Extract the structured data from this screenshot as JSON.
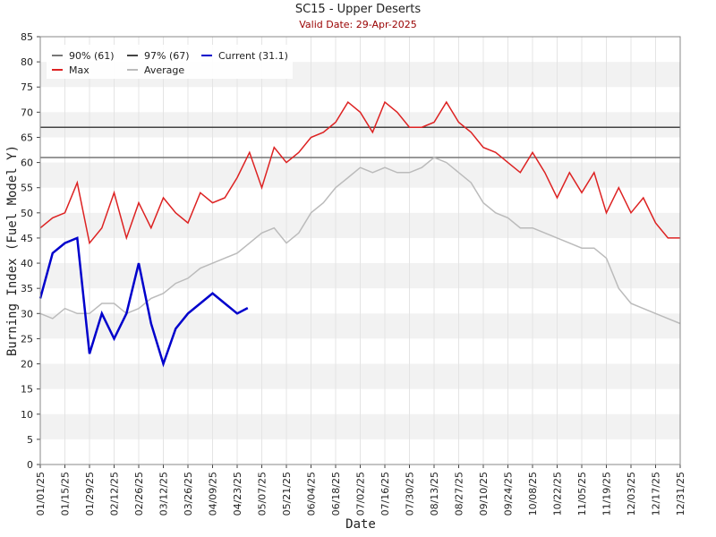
{
  "chart_data": {
    "type": "line",
    "title": "SC15 - Upper Deserts",
    "subtitle": "Valid Date: 29-Apr-2025",
    "xlabel": "Date",
    "ylabel": "Burning Index (Fuel Model Y)",
    "xlim": [
      "2025-01-01",
      "2025-12-31"
    ],
    "xticks": [
      {
        "value": "2025-01-01",
        "label": "01/01/25"
      },
      {
        "value": "2025-01-15",
        "label": "01/15/25"
      },
      {
        "value": "2025-01-29",
        "label": "01/29/25"
      },
      {
        "value": "2025-02-12",
        "label": "02/12/25"
      },
      {
        "value": "2025-02-26",
        "label": "02/26/25"
      },
      {
        "value": "2025-03-12",
        "label": "03/12/25"
      },
      {
        "value": "2025-03-26",
        "label": "03/26/25"
      },
      {
        "value": "2025-04-09",
        "label": "04/09/25"
      },
      {
        "value": "2025-04-23",
        "label": "04/23/25"
      },
      {
        "value": "2025-05-07",
        "label": "05/07/25"
      },
      {
        "value": "2025-05-21",
        "label": "05/21/25"
      },
      {
        "value": "2025-06-04",
        "label": "06/04/25"
      },
      {
        "value": "2025-06-18",
        "label": "06/18/25"
      },
      {
        "value": "2025-07-02",
        "label": "07/02/25"
      },
      {
        "value": "2025-07-16",
        "label": "07/16/25"
      },
      {
        "value": "2025-07-30",
        "label": "07/30/25"
      },
      {
        "value": "2025-08-13",
        "label": "08/13/25"
      },
      {
        "value": "2025-08-27",
        "label": "08/27/25"
      },
      {
        "value": "2025-09-10",
        "label": "09/10/25"
      },
      {
        "value": "2025-09-24",
        "label": "09/24/25"
      },
      {
        "value": "2025-10-08",
        "label": "10/08/25"
      },
      {
        "value": "2025-10-22",
        "label": "10/22/25"
      },
      {
        "value": "2025-11-05",
        "label": "11/05/25"
      },
      {
        "value": "2025-11-19",
        "label": "11/19/25"
      },
      {
        "value": "2025-12-03",
        "label": "12/03/25"
      },
      {
        "value": "2025-12-17",
        "label": "12/17/25"
      },
      {
        "value": "2025-12-31",
        "label": "12/31/25"
      }
    ],
    "ylim": [
      0,
      85
    ],
    "yticks": [
      0,
      5,
      10,
      15,
      20,
      25,
      30,
      35,
      40,
      45,
      50,
      55,
      60,
      65,
      70,
      75,
      80,
      85
    ],
    "grid": true,
    "legend": "upper left",
    "reference_lines": [
      {
        "name": "90% (61)",
        "color": "#777777",
        "value": 61
      },
      {
        "name": "97% (67)",
        "color": "#444444",
        "value": 67
      }
    ],
    "series": [
      {
        "name": "Max",
        "color": "#dd2222",
        "x": [
          "2025-01-01",
          "2025-01-08",
          "2025-01-15",
          "2025-01-22",
          "2025-01-29",
          "2025-02-05",
          "2025-02-12",
          "2025-02-19",
          "2025-02-26",
          "2025-03-05",
          "2025-03-12",
          "2025-03-19",
          "2025-03-26",
          "2025-04-02",
          "2025-04-09",
          "2025-04-16",
          "2025-04-23",
          "2025-04-30",
          "2025-05-07",
          "2025-05-14",
          "2025-05-21",
          "2025-05-28",
          "2025-06-04",
          "2025-06-11",
          "2025-06-18",
          "2025-06-25",
          "2025-07-02",
          "2025-07-09",
          "2025-07-16",
          "2025-07-23",
          "2025-07-30",
          "2025-08-06",
          "2025-08-13",
          "2025-08-20",
          "2025-08-27",
          "2025-09-03",
          "2025-09-10",
          "2025-09-17",
          "2025-09-24",
          "2025-10-01",
          "2025-10-08",
          "2025-10-15",
          "2025-10-22",
          "2025-10-29",
          "2025-11-05",
          "2025-11-12",
          "2025-11-19",
          "2025-11-26",
          "2025-12-03",
          "2025-12-10",
          "2025-12-17",
          "2025-12-24",
          "2025-12-31"
        ],
        "values": [
          47,
          49,
          50,
          56,
          44,
          47,
          54,
          45,
          52,
          47,
          53,
          50,
          48,
          54,
          52,
          53,
          57,
          62,
          55,
          63,
          60,
          62,
          65,
          66,
          68,
          72,
          70,
          66,
          72,
          70,
          67,
          67,
          68,
          72,
          68,
          66,
          63,
          62,
          60,
          58,
          62,
          58,
          53,
          58,
          54,
          58,
          50,
          55,
          50,
          53,
          48,
          45,
          45
        ]
      },
      {
        "name": "Average",
        "color": "#bbbbbb",
        "x": [
          "2025-01-01",
          "2025-01-08",
          "2025-01-15",
          "2025-01-22",
          "2025-01-29",
          "2025-02-05",
          "2025-02-12",
          "2025-02-19",
          "2025-02-26",
          "2025-03-05",
          "2025-03-12",
          "2025-03-19",
          "2025-03-26",
          "2025-04-02",
          "2025-04-09",
          "2025-04-16",
          "2025-04-23",
          "2025-04-30",
          "2025-05-07",
          "2025-05-14",
          "2025-05-21",
          "2025-05-28",
          "2025-06-04",
          "2025-06-11",
          "2025-06-18",
          "2025-06-25",
          "2025-07-02",
          "2025-07-09",
          "2025-07-16",
          "2025-07-23",
          "2025-07-30",
          "2025-08-06",
          "2025-08-13",
          "2025-08-20",
          "2025-08-27",
          "2025-09-03",
          "2025-09-10",
          "2025-09-17",
          "2025-09-24",
          "2025-10-01",
          "2025-10-08",
          "2025-10-15",
          "2025-10-22",
          "2025-10-29",
          "2025-11-05",
          "2025-11-12",
          "2025-11-19",
          "2025-11-26",
          "2025-12-03",
          "2025-12-10",
          "2025-12-17",
          "2025-12-24",
          "2025-12-31"
        ],
        "values": [
          30,
          29,
          31,
          30,
          30,
          32,
          32,
          30,
          31,
          33,
          34,
          36,
          37,
          39,
          40,
          41,
          42,
          44,
          46,
          47,
          44,
          46,
          50,
          52,
          55,
          57,
          59,
          58,
          59,
          58,
          58,
          59,
          61,
          60,
          58,
          56,
          52,
          50,
          49,
          47,
          47,
          46,
          45,
          44,
          43,
          43,
          41,
          35,
          32,
          31,
          30,
          29,
          28
        ]
      },
      {
        "name": "Current (31.1)",
        "color": "#0000cc",
        "x": [
          "2025-01-01",
          "2025-01-08",
          "2025-01-15",
          "2025-01-22",
          "2025-01-29",
          "2025-02-05",
          "2025-02-12",
          "2025-02-19",
          "2025-02-26",
          "2025-03-05",
          "2025-03-12",
          "2025-03-19",
          "2025-03-26",
          "2025-04-02",
          "2025-04-09",
          "2025-04-16",
          "2025-04-23",
          "2025-04-29"
        ],
        "values": [
          33,
          42,
          44,
          45,
          22,
          30,
          25,
          30,
          40,
          28,
          20,
          27,
          30,
          32,
          34,
          32,
          30,
          31.1
        ]
      }
    ]
  }
}
